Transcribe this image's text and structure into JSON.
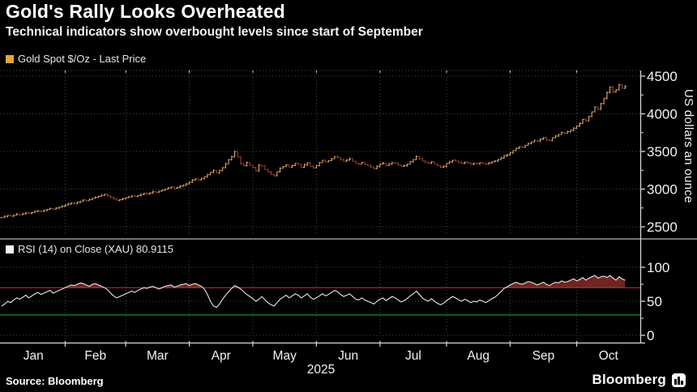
{
  "header": {
    "title": "Gold's Rally Looks Overheated",
    "subtitle": "Technical indicators show overbought levels since start of September"
  },
  "footer": {
    "source": "Source: Bloomberg",
    "brand": "Bloomberg"
  },
  "chart_data": [
    {
      "panel": "price",
      "type": "ohlc-bar",
      "legend_label": "Gold Spot $/Oz - Last Price",
      "legend_swatch_color": "#E8A33D",
      "ylabel": "US dollars an ounce",
      "ylim": [
        2430,
        4580
      ],
      "yticks": [
        2500,
        3000,
        3500,
        4000,
        4500
      ],
      "yticks_minor": [
        2750,
        3250,
        3750,
        4250
      ],
      "x_months": [
        "Jan",
        "Feb",
        "Mar",
        "Apr",
        "May",
        "Jun",
        "Jul",
        "Aug",
        "Sep",
        "Oct"
      ],
      "year": "2025",
      "month_start_day": [
        0,
        21,
        41,
        62,
        83,
        104,
        125,
        147,
        168,
        190
      ],
      "domain_days": 211,
      "grid": true,
      "colors": {
        "bar_up": "#DCA566",
        "bar_down": "#A23A32"
      },
      "closes": [
        2625,
        2638,
        2650,
        2642,
        2656,
        2668,
        2660,
        2672,
        2685,
        2678,
        2690,
        2703,
        2712,
        2705,
        2718,
        2730,
        2742,
        2735,
        2748,
        2760,
        2772,
        2788,
        2802,
        2815,
        2808,
        2825,
        2840,
        2855,
        2848,
        2862,
        2878,
        2892,
        2905,
        2918,
        2930,
        2912,
        2888,
        2870,
        2852,
        2860,
        2872,
        2885,
        2898,
        2910,
        2902,
        2915,
        2928,
        2942,
        2935,
        2950,
        2965,
        2958,
        2972,
        2986,
        3000,
        3014,
        3028,
        3010,
        3022,
        3038,
        3052,
        3068,
        3090,
        3118,
        3135,
        3122,
        3140,
        3165,
        3192,
        3222,
        3248,
        3215,
        3245,
        3285,
        3335,
        3390,
        3428,
        3500,
        3425,
        3338,
        3312,
        3352,
        3318,
        3288,
        3242,
        3318,
        3305,
        3262,
        3228,
        3198,
        3178,
        3232,
        3278,
        3302,
        3322,
        3292,
        3312,
        3340,
        3328,
        3290,
        3322,
        3348,
        3302,
        3282,
        3312,
        3352,
        3382,
        3362,
        3378,
        3402,
        3432,
        3420,
        3392,
        3372,
        3386,
        3402,
        3372,
        3342,
        3332,
        3355,
        3332,
        3312,
        3292,
        3272,
        3302,
        3332,
        3342,
        3312,
        3332,
        3352,
        3342,
        3322,
        3302,
        3312,
        3332,
        3362,
        3392,
        3432,
        3402,
        3372,
        3352,
        3342,
        3362,
        3332,
        3312,
        3292,
        3302,
        3342,
        3362,
        3382,
        3372,
        3352,
        3342,
        3356,
        3346,
        3332,
        3342,
        3336,
        3352,
        3342,
        3332,
        3346,
        3362,
        3372,
        3392,
        3412,
        3442,
        3452,
        3482,
        3512,
        3542,
        3562,
        3556,
        3582,
        3605,
        3625,
        3645,
        3638,
        3662,
        3682,
        3652,
        3646,
        3682,
        3705,
        3725,
        3752,
        3742,
        3762,
        3782,
        3808,
        3838,
        3872,
        3925,
        3905,
        3965,
        4025,
        4090,
        4058,
        4135,
        4205,
        4282,
        4355,
        4290,
        4320,
        4385,
        4340,
        4365
      ]
    },
    {
      "panel": "rsi",
      "type": "line",
      "legend_label": "RSI (14)  on Close (XAU) 80.9115",
      "legend_swatch_color": "#f2f2f2",
      "last_value": 80.9115,
      "ylim": [
        0,
        100
      ],
      "yticks": [
        0,
        50,
        100
      ],
      "yticks_minor": [
        25,
        75
      ],
      "overbought_level": 70,
      "oversold_level": 30,
      "grid": true,
      "colors": {
        "line": "#e9e9e9",
        "overbought": "#c0272d",
        "oversold": "#1f7a33",
        "fill": "rgba(204,68,62,0.55)"
      },
      "values": [
        43,
        46,
        50,
        48,
        52,
        55,
        53,
        56,
        59,
        55,
        58,
        61,
        63,
        60,
        62,
        64,
        66,
        62,
        64,
        66,
        68,
        70,
        72,
        74,
        73,
        75,
        77,
        76,
        74,
        72,
        75,
        76,
        74,
        72,
        70,
        67,
        62,
        58,
        55,
        57,
        59,
        61,
        63,
        65,
        63,
        66,
        68,
        70,
        69,
        71,
        72,
        70,
        68,
        70,
        72,
        73,
        74,
        71,
        72,
        74,
        75,
        76,
        73,
        75,
        76,
        74,
        72,
        68,
        60,
        50,
        43,
        41,
        46,
        53,
        59,
        64,
        69,
        73,
        71,
        68,
        64,
        60,
        57,
        54,
        50,
        53,
        57,
        52,
        48,
        45,
        43,
        48,
        53,
        56,
        59,
        55,
        58,
        61,
        59,
        55,
        58,
        61,
        56,
        53,
        55,
        58,
        61,
        58,
        60,
        63,
        66,
        64,
        60,
        57,
        59,
        61,
        57,
        53,
        52,
        55,
        52,
        50,
        48,
        46,
        50,
        53,
        55,
        51,
        54,
        57,
        55,
        52,
        49,
        51,
        54,
        58,
        61,
        65,
        60,
        55,
        52,
        50,
        54,
        50,
        47,
        45,
        47,
        51,
        54,
        57,
        55,
        52,
        50,
        53,
        51,
        48,
        50,
        49,
        52,
        50,
        48,
        51,
        54,
        56,
        60,
        64,
        69,
        71,
        74,
        76,
        78,
        76,
        75,
        77,
        79,
        78,
        76,
        74,
        76,
        78,
        75,
        73,
        76,
        78,
        77,
        80,
        78,
        79,
        81,
        83,
        80,
        82,
        85,
        81,
        84,
        86,
        88,
        84,
        86,
        87,
        85,
        88,
        84,
        81,
        86,
        83,
        80.91
      ]
    }
  ]
}
